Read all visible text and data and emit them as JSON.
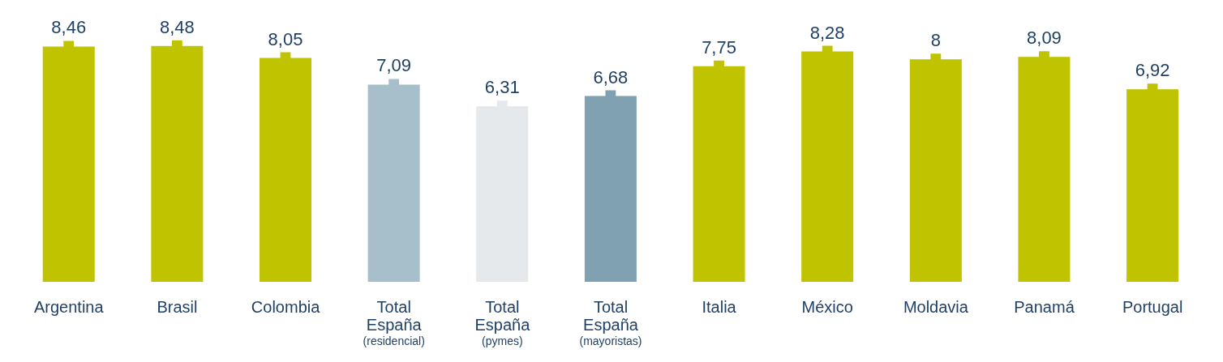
{
  "chart_data": {
    "type": "bar",
    "categories": [
      "Argentina",
      "Brasil",
      "Colombia",
      "Total España (residencial)",
      "Total España (pymes)",
      "Total España (mayoristas)",
      "Italia",
      "México",
      "Moldavia",
      "Panamá",
      "Portugal"
    ],
    "values": [
      8.46,
      8.48,
      8.05,
      7.09,
      6.31,
      6.68,
      7.75,
      8.28,
      8,
      8.09,
      6.92
    ],
    "colors": [
      "#c0c300",
      "#c0c300",
      "#c0c300",
      "#a6bfca",
      "#e5e9ec",
      "#7fa1b2",
      "#c0c300",
      "#c0c300",
      "#c0c300",
      "#c0c300",
      "#c0c300"
    ],
    "value_labels": [
      "8,46",
      "8,48",
      "8,05",
      "7,09",
      "6,31",
      "6,68",
      "7,75",
      "8,28",
      "8",
      "8,09",
      "6,92"
    ],
    "tick_labels": "x"
  }
}
